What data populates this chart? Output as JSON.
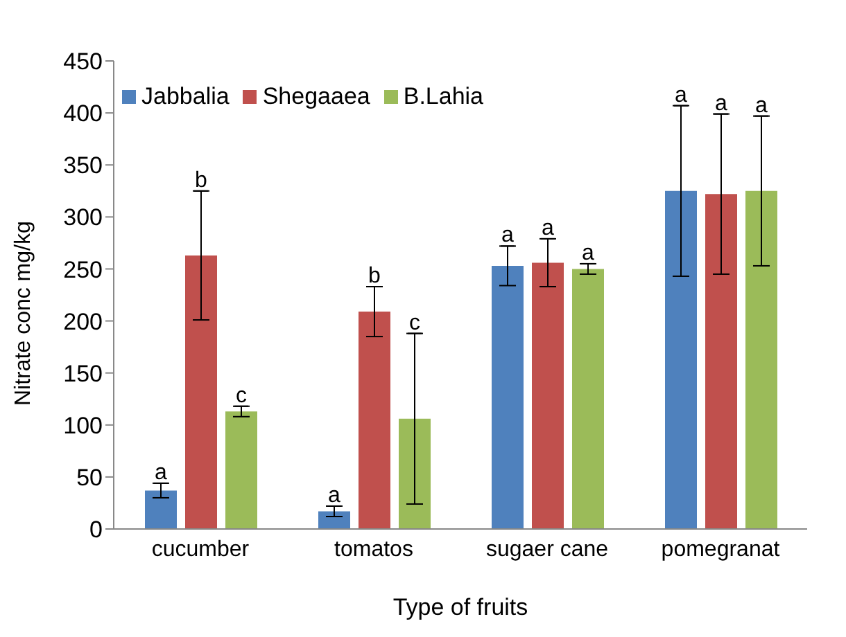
{
  "chart_data": {
    "type": "bar",
    "xlabel": "Type of fruits",
    "ylabel": "Nitrate conc mg/kg",
    "categories": [
      "cucumber",
      "tomatos",
      "sugaer cane",
      "pomegranat"
    ],
    "series": [
      {
        "name": "Jabbalia",
        "color": "#4f81bd",
        "values": [
          37,
          17,
          253,
          325
        ],
        "errors": [
          7,
          5,
          19,
          82
        ]
      },
      {
        "name": "Shegaaea",
        "color": "#c0504d",
        "values": [
          263,
          209,
          256,
          322
        ],
        "errors": [
          62,
          24,
          23,
          77
        ]
      },
      {
        "name": "B.Lahia",
        "color": "#9bbb59",
        "values": [
          113,
          106,
          250,
          325
        ],
        "errors": [
          5,
          82,
          5,
          72
        ]
      }
    ],
    "ylim": [
      0,
      450
    ],
    "yticks": [
      0,
      50,
      100,
      150,
      200,
      250,
      300,
      350,
      400,
      450
    ],
    "grid": false,
    "legend": "top left",
    "annotations": [
      "a",
      "b",
      "c",
      "a",
      "b",
      "c",
      "a",
      "a",
      "a",
      "a",
      "a",
      "a"
    ]
  }
}
